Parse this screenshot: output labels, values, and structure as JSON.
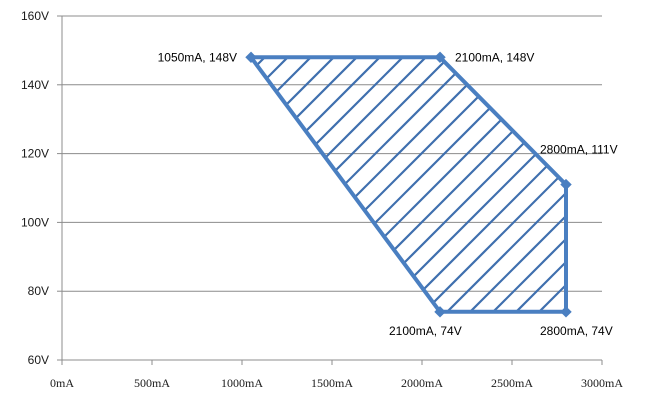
{
  "chart_data": {
    "type": "scatter",
    "title": "",
    "xlabel": "",
    "ylabel": "",
    "xlim": [
      0,
      3000
    ],
    "ylim": [
      60,
      160
    ],
    "x_ticks": [
      0,
      500,
      1000,
      1500,
      2000,
      2500,
      3000
    ],
    "x_tick_labels": [
      "0mA",
      "500mA",
      "1000mA",
      "1500mA",
      "2000mA",
      "2500mA",
      "3000mA"
    ],
    "y_ticks": [
      60,
      80,
      100,
      120,
      140,
      160
    ],
    "y_tick_labels": [
      "60V",
      "80V",
      "100V",
      "120V",
      "140V",
      "160V"
    ],
    "grid": "horizontal",
    "legend": "none",
    "fill": "hatched",
    "series": [
      {
        "points": [
          {
            "x": 1050,
            "y": 148,
            "label": "1050mA, 148V"
          },
          {
            "x": 2100,
            "y": 148,
            "label": "2100mA, 148V"
          },
          {
            "x": 2800,
            "y": 111,
            "label": "2800mA, 111V"
          },
          {
            "x": 2800,
            "y": 74,
            "label": "2800mA, 74V"
          },
          {
            "x": 2100,
            "y": 74,
            "label": "2100mA, 74V"
          }
        ],
        "closed": true
      }
    ],
    "colors": {
      "series": "#4a7fc1",
      "hatch": "#3f6fae",
      "grid": "#8c8c8c",
      "axis": "#8c8c8c"
    }
  }
}
